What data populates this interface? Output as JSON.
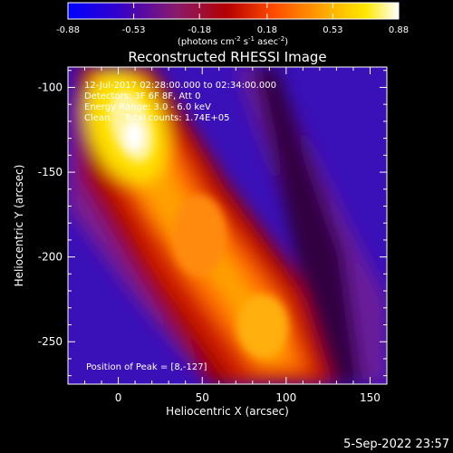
{
  "colorbar": {
    "ticks": [
      "-0.88",
      "-0.53",
      "-0.18",
      "0.18",
      "0.53",
      "0.88"
    ],
    "tick_values": [
      -0.88,
      -0.53,
      -0.18,
      0.18,
      0.53,
      0.88
    ],
    "range": [
      -0.88,
      0.88
    ],
    "units_prefix": "(photons cm",
    "units_exp1": "-2",
    "units_mid": " s",
    "units_exp2": "-1",
    "units_mid2": " asec",
    "units_exp3": "-2",
    "units_suffix": ")",
    "colormap": [
      "#0000ff",
      "#4400cc",
      "#7a1a8a",
      "#b00000",
      "#e84a00",
      "#ff9a00",
      "#ffd400",
      "#ffffcc"
    ]
  },
  "plot": {
    "title": "Reconstructed RHESSI Image",
    "xlabel": "Heliocentric X (arcsec)",
    "ylabel": "Heliocentric Y (arcsec)",
    "xlim": [
      -30,
      160
    ],
    "ylim": [
      -275,
      -88
    ],
    "xticks": [
      0,
      50,
      100,
      150
    ],
    "yticks": [
      -100,
      -150,
      -200,
      -250
    ],
    "info": [
      "12-Jul-2017 02:28:00.000 to 02:34:00.000",
      "Detectors: 3F 6F 8F, Att 0",
      "Energy Range: 3.0 - 6.0 keV",
      "Clean     Total counts: 1.74E+05"
    ],
    "peak_label": "Position of Peak = [8,-127]",
    "peak": [
      8,
      -127
    ]
  },
  "footer": {
    "timestamp": "5-Sep-2022 23:57"
  }
}
